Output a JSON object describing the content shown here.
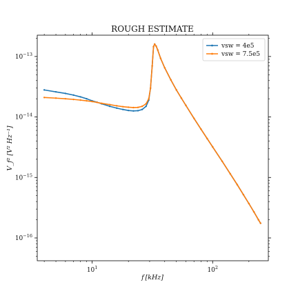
{
  "chart_data": {
    "type": "line",
    "title": "ROUGH ESTIMATE",
    "xlabel": "f [kHz]",
    "ylabel": "V_f² [V² Hz⁻¹]",
    "xscale": "log",
    "yscale": "log",
    "xlim": [
      3.5,
      290
    ],
    "ylim": [
      4.2e-17,
      2.25e-13
    ],
    "x_ticks": [
      {
        "value": 10,
        "base": "10",
        "exp": "1"
      },
      {
        "value": 100,
        "base": "10",
        "exp": "2"
      }
    ],
    "y_ticks": [
      {
        "value": 1e-16,
        "base": "10",
        "exp": "−16"
      },
      {
        "value": 1e-15,
        "base": "10",
        "exp": "−15"
      },
      {
        "value": 1e-14,
        "base": "10",
        "exp": "−14"
      },
      {
        "value": 1e-13,
        "base": "10",
        "exp": "−13"
      }
    ],
    "grid": false,
    "legend": "top-right",
    "series": [
      {
        "name": "vsw = 4e5",
        "color": "#1f77b4",
        "points": [
          [
            4.0,
            2.8e-14
          ],
          [
            5.0,
            2.6e-14
          ],
          [
            6.0,
            2.45e-14
          ],
          [
            7.0,
            2.3e-14
          ],
          [
            8.0,
            2.15e-14
          ],
          [
            9.0,
            2e-14
          ],
          [
            10.0,
            1.85e-14
          ],
          [
            11.0,
            1.75e-14
          ],
          [
            12.0,
            1.65e-14
          ],
          [
            14.0,
            1.5e-14
          ],
          [
            16.0,
            1.4e-14
          ],
          [
            18.0,
            1.33e-14
          ],
          [
            20.0,
            1.28e-14
          ],
          [
            22.0,
            1.26e-14
          ],
          [
            24.0,
            1.27e-14
          ],
          [
            26.0,
            1.33e-14
          ],
          [
            28.0,
            1.5e-14
          ],
          [
            29.5,
            1.9e-14
          ],
          [
            30.5,
            3e-14
          ],
          [
            31.5,
            7e-14
          ],
          [
            32.3,
            1.45e-13
          ],
          [
            33.0,
            1.6e-13
          ],
          [
            34.0,
            1.48e-13
          ],
          [
            35.0,
            1.28e-13
          ],
          [
            37.0,
            9.3e-14
          ],
          [
            40.0,
            6.5e-14
          ],
          [
            45.0,
            4.1e-14
          ],
          [
            50.0,
            2.8e-14
          ],
          [
            55.0,
            2.05e-14
          ],
          [
            60.0,
            1.55e-14
          ],
          [
            70.0,
            9.5e-15
          ],
          [
            80.0,
            6.3e-15
          ],
          [
            90.0,
            4.4e-15
          ],
          [
            100.0,
            3.2e-15
          ],
          [
            120.0,
            1.85e-15
          ],
          [
            140.0,
            1.15e-15
          ],
          [
            160.0,
            7.6e-16
          ],
          [
            180.0,
            5.2e-16
          ],
          [
            200.0,
            3.7e-16
          ],
          [
            220.0,
            2.7e-16
          ],
          [
            240.0,
            2e-16
          ],
          [
            250.0,
            1.75e-16
          ]
        ]
      },
      {
        "name": "vsw = 7.5e5",
        "color": "#ff7f0e",
        "points": [
          [
            4.0,
            2.1e-14
          ],
          [
            5.0,
            2.05e-14
          ],
          [
            6.0,
            2e-14
          ],
          [
            7.0,
            1.95e-14
          ],
          [
            8.0,
            1.9e-14
          ],
          [
            9.0,
            1.85e-14
          ],
          [
            10.0,
            1.8e-14
          ],
          [
            11.0,
            1.74e-14
          ],
          [
            12.0,
            1.68e-14
          ],
          [
            14.0,
            1.6e-14
          ],
          [
            16.0,
            1.53e-14
          ],
          [
            18.0,
            1.48e-14
          ],
          [
            20.0,
            1.45e-14
          ],
          [
            22.0,
            1.43e-14
          ],
          [
            24.0,
            1.44e-14
          ],
          [
            26.0,
            1.5e-14
          ],
          [
            28.0,
            1.65e-14
          ],
          [
            29.5,
            2e-14
          ],
          [
            30.5,
            3e-14
          ],
          [
            31.5,
            7e-14
          ],
          [
            32.3,
            1.45e-13
          ],
          [
            33.0,
            1.6e-13
          ],
          [
            34.0,
            1.48e-13
          ],
          [
            35.0,
            1.28e-13
          ],
          [
            37.0,
            9.3e-14
          ],
          [
            40.0,
            6.5e-14
          ],
          [
            45.0,
            4.1e-14
          ],
          [
            50.0,
            2.8e-14
          ],
          [
            55.0,
            2.05e-14
          ],
          [
            60.0,
            1.55e-14
          ],
          [
            70.0,
            9.5e-15
          ],
          [
            80.0,
            6.3e-15
          ],
          [
            90.0,
            4.4e-15
          ],
          [
            100.0,
            3.2e-15
          ],
          [
            120.0,
            1.85e-15
          ],
          [
            140.0,
            1.15e-15
          ],
          [
            160.0,
            7.6e-16
          ],
          [
            180.0,
            5.2e-16
          ],
          [
            200.0,
            3.7e-16
          ],
          [
            220.0,
            2.7e-16
          ],
          [
            240.0,
            2e-16
          ],
          [
            250.0,
            1.75e-16
          ]
        ]
      }
    ]
  }
}
